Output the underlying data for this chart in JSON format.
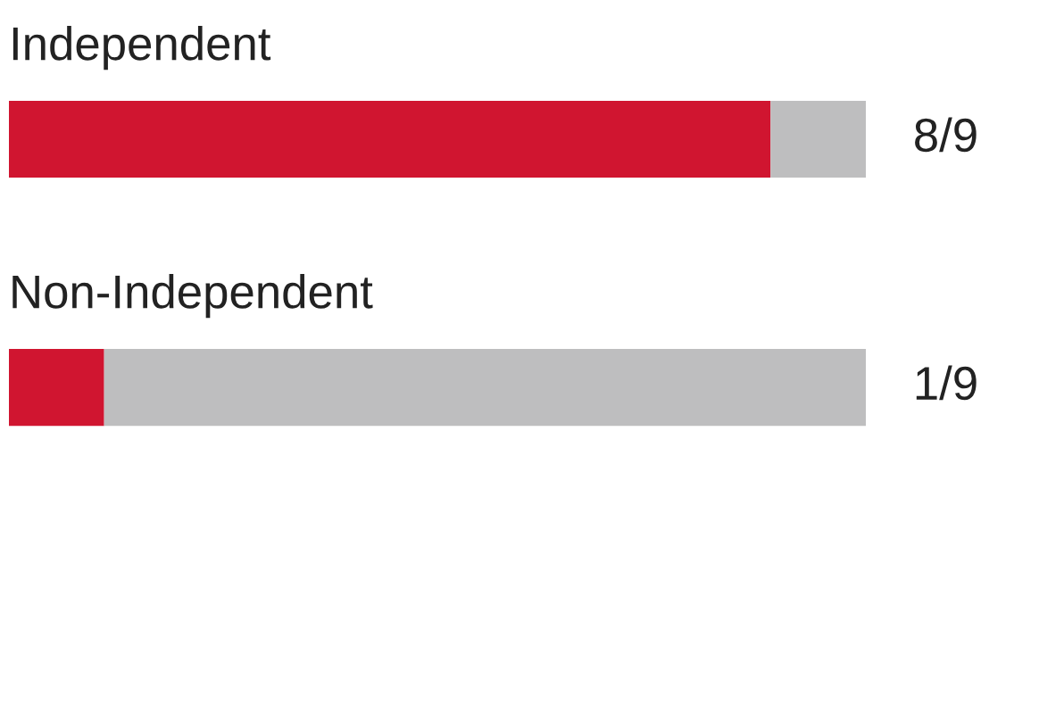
{
  "chart_data": {
    "type": "bar",
    "orientation": "horizontal",
    "stacked": true,
    "categories": [
      "Independent",
      "Non-Independent"
    ],
    "series": [
      {
        "color": "#d01530",
        "values": [
          8,
          1
        ],
        "value_labels": [
          "8/9",
          "1/9"
        ]
      },
      {
        "color": "#bebebf",
        "values": [
          1,
          8
        ]
      }
    ]
  }
}
